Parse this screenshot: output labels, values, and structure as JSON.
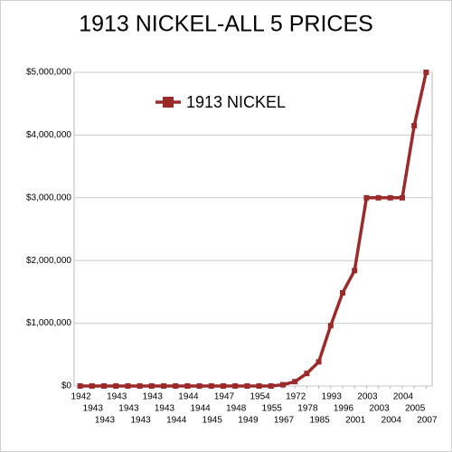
{
  "chart_data": {
    "type": "line",
    "title": "1913 NICKEL-ALL 5 PRICES",
    "categories": [
      "1942",
      "1943",
      "1943",
      "1943",
      "1943",
      "1943",
      "1943",
      "1943",
      "1944",
      "1944",
      "1944",
      "1945",
      "1947",
      "1948",
      "1949",
      "1954",
      "1955",
      "1967",
      "1972",
      "1978",
      "1985",
      "1993",
      "1996",
      "2001",
      "2003",
      "2003",
      "2004",
      "2004",
      "2005",
      "2007"
    ],
    "series": [
      {
        "name": "1913 NICKEL",
        "color": "#9b2b2b",
        "values": [
          0,
          0,
          0,
          0,
          0,
          0,
          0,
          0,
          0,
          0,
          0,
          0,
          0,
          0,
          0,
          0,
          0,
          20000,
          70000,
          200000,
          385000,
          962500,
          1485000,
          1840000,
          3000000,
          3000000,
          3000000,
          3000000,
          4150000,
          5000000
        ]
      }
    ],
    "ylim": [
      0,
      5000000
    ],
    "yticks": [
      {
        "value": 0,
        "label": "$0"
      },
      {
        "value": 1000000,
        "label": "$1,000,000"
      },
      {
        "value": 2000000,
        "label": "$2,000,000"
      },
      {
        "value": 3000000,
        "label": "$3,000,000"
      },
      {
        "value": 4000000,
        "label": "$4,000,000"
      },
      {
        "value": 5000000,
        "label": "$5,000,000"
      }
    ],
    "grid": true,
    "legend": "top-left"
  }
}
